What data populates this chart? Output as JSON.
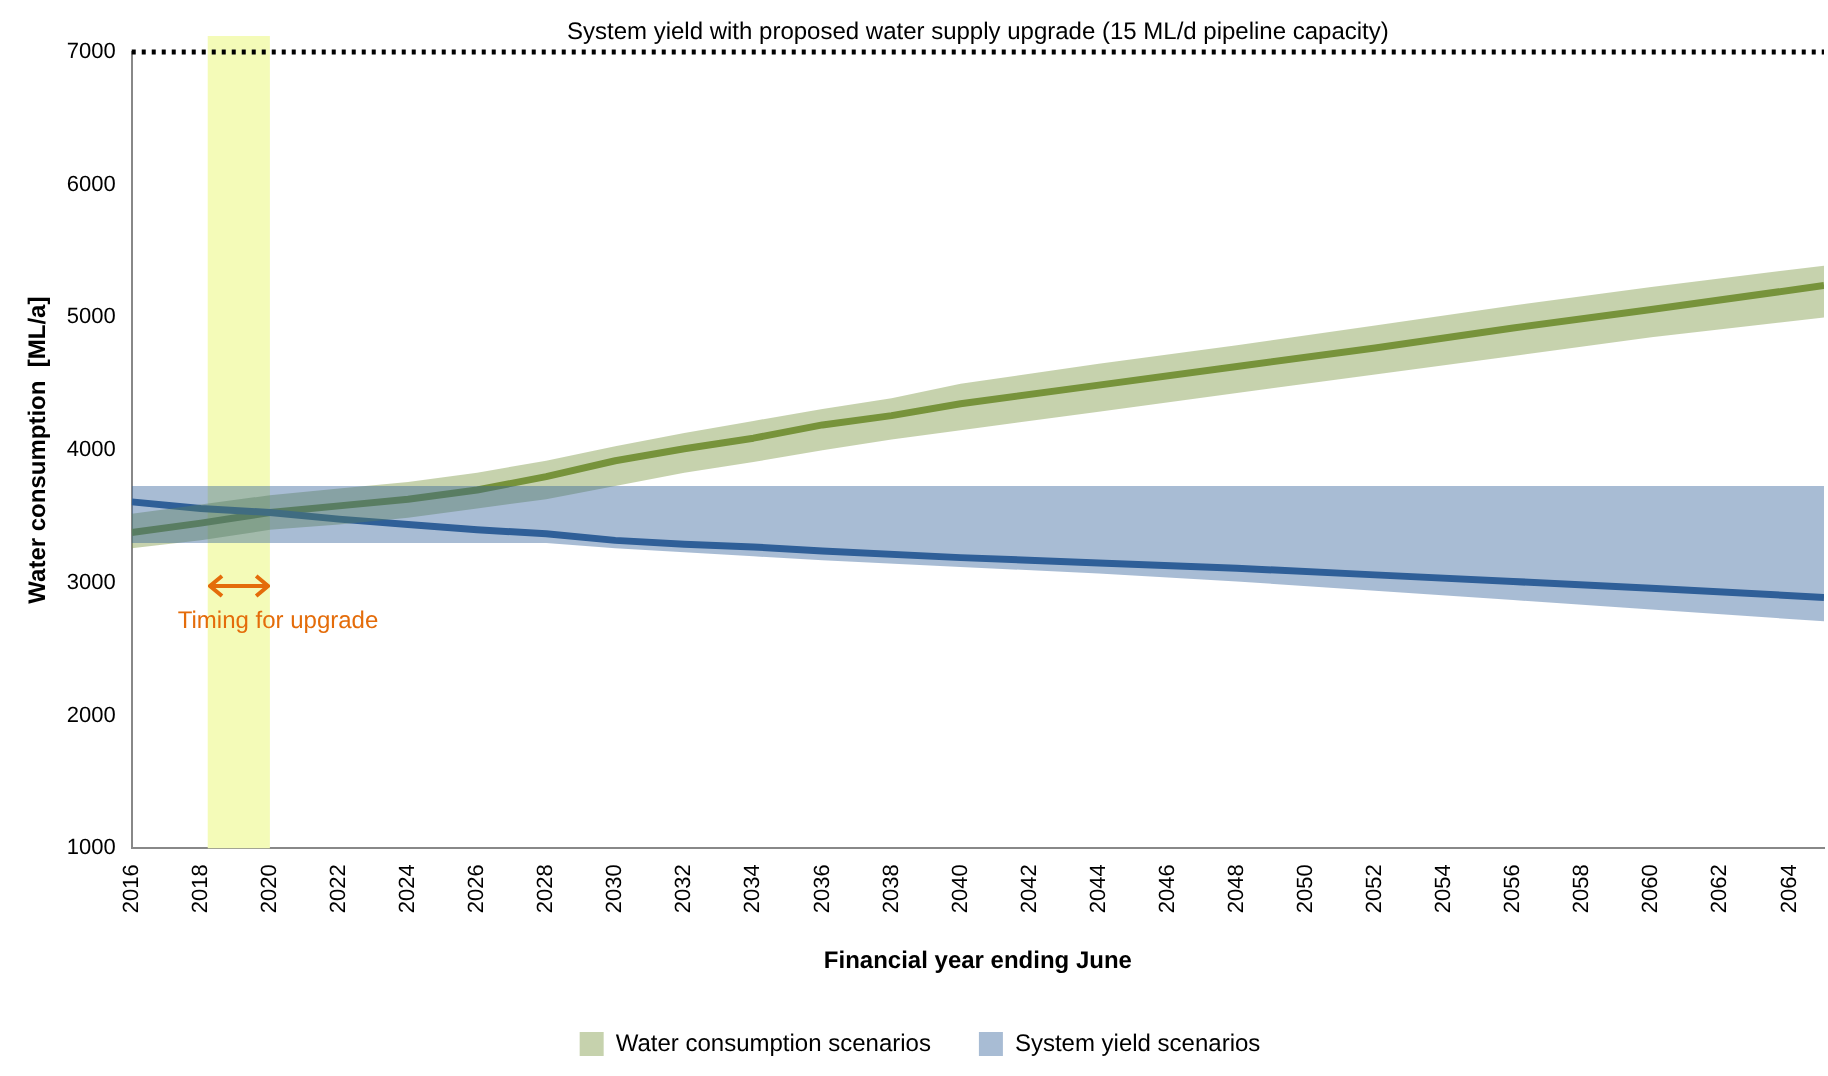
{
  "chart_data": {
    "type": "line",
    "xlabel": "Financial year ending June",
    "ylabel": "Water consumption  [ML/a]",
    "xlim": [
      2016,
      2065
    ],
    "xticks": [
      2016,
      2018,
      2020,
      2022,
      2024,
      2026,
      2028,
      2030,
      2032,
      2034,
      2036,
      2038,
      2040,
      2042,
      2044,
      2046,
      2048,
      2050,
      2052,
      2054,
      2056,
      2058,
      2060,
      2062,
      2064
    ],
    "ylim": [
      1000,
      7000
    ],
    "yticks": [
      1000,
      2000,
      3000,
      4000,
      5000,
      6000,
      7000
    ],
    "grid": false,
    "legend": "bottom",
    "marker": "none",
    "line_style": "solid",
    "series": [
      {
        "name": "System yield scenarios",
        "color": "#2f5f98",
        "x": [
          2016,
          2018,
          2020,
          2022,
          2024,
          2026,
          2028,
          2030,
          2032,
          2034,
          2036,
          2040,
          2044,
          2048,
          2052,
          2056,
          2060,
          2065
        ],
        "values": [
          3610,
          3560,
          3530,
          3480,
          3440,
          3400,
          3370,
          3320,
          3290,
          3270,
          3240,
          3190,
          3150,
          3110,
          3060,
          3010,
          2960,
          2890
        ],
        "lower": [
          3300,
          3300,
          3300,
          3300,
          3300,
          3300,
          3300,
          3260,
          3230,
          3200,
          3170,
          3120,
          3070,
          3010,
          2940,
          2870,
          2800,
          2710
        ],
        "upper": [
          3730,
          3730,
          3730,
          3730,
          3730,
          3730,
          3730,
          3730,
          3730,
          3730,
          3730,
          3730,
          3730,
          3730,
          3730,
          3730,
          3730,
          3730
        ]
      },
      {
        "name": "Water consumption scenarios",
        "color": "#77933c",
        "x": [
          2016,
          2018,
          2020,
          2022,
          2024,
          2026,
          2028,
          2030,
          2032,
          2034,
          2036,
          2038,
          2040,
          2044,
          2048,
          2052,
          2056,
          2060,
          2065
        ],
        "values": [
          3380,
          3450,
          3530,
          3580,
          3630,
          3700,
          3800,
          3920,
          4010,
          4090,
          4190,
          4260,
          4350,
          4490,
          4630,
          4770,
          4920,
          5060,
          5240
        ],
        "lower": [
          3260,
          3320,
          3400,
          3440,
          3490,
          3560,
          3630,
          3730,
          3830,
          3910,
          4000,
          4080,
          4150,
          4290,
          4430,
          4570,
          4710,
          4850,
          5000
        ],
        "upper": [
          3520,
          3590,
          3660,
          3710,
          3760,
          3830,
          3920,
          4030,
          4130,
          4220,
          4310,
          4390,
          4500,
          4650,
          4790,
          4940,
          5090,
          5230,
          5390
        ]
      }
    ],
    "ref_lines": [
      {
        "axis": "y",
        "value": 7000,
        "label": "System yield with proposed water supply upgrade (15 ML/d pipeline capacity)",
        "color": "#000000",
        "line_style": "dotted"
      }
    ],
    "bands": [
      {
        "axis": "x",
        "from": 2018.2,
        "to": 2020,
        "label": "Timing for upgrade",
        "color": "#f4fbb8"
      }
    ]
  }
}
